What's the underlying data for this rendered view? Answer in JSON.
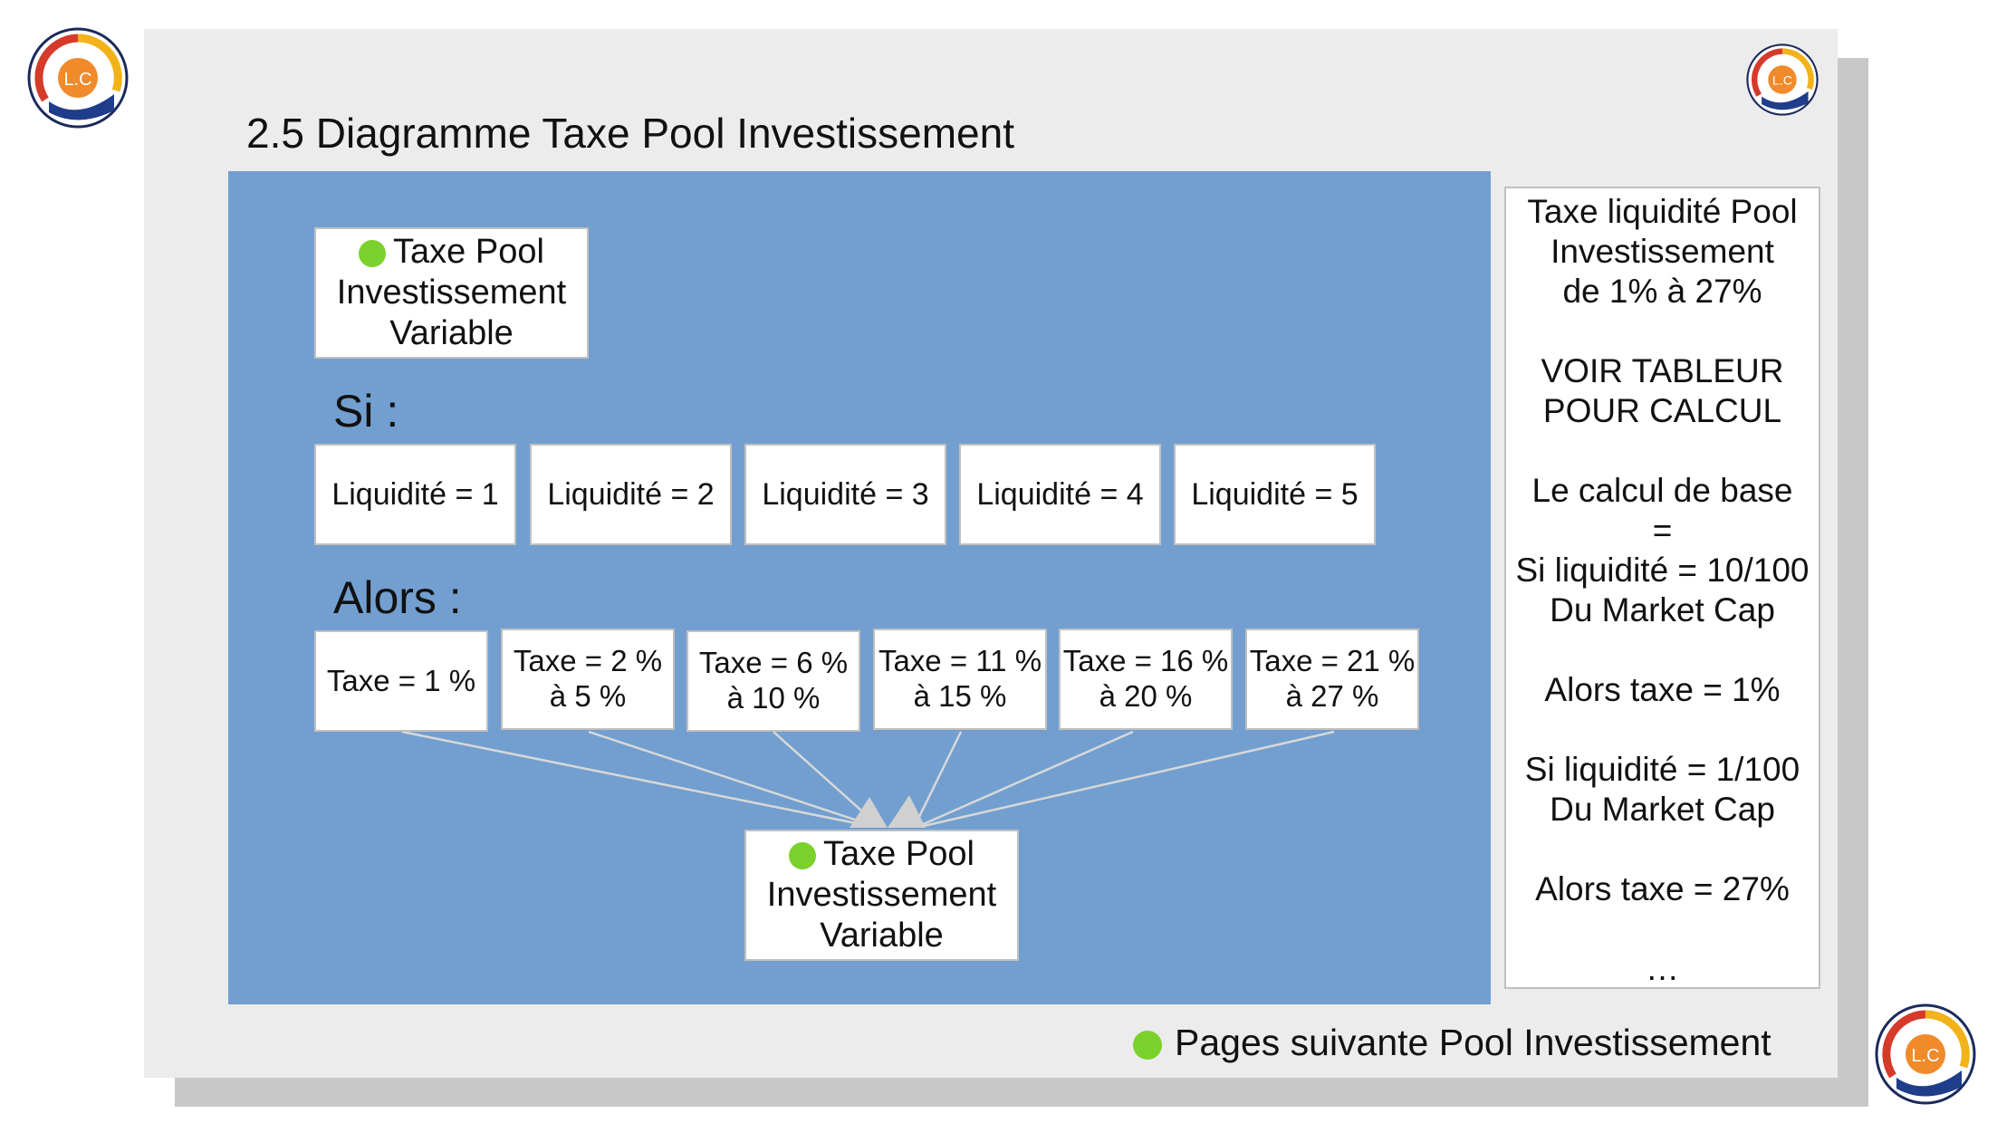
{
  "title": "2.5 Diagramme Taxe Pool Investissement",
  "colors": {
    "canvas": "#729fcf",
    "dot": "#7bd12b",
    "slide": "#ececec",
    "shadow": "#c8c8c8"
  },
  "top_box": {
    "lines": [
      "Taxe Pool",
      "Investissement",
      "Variable"
    ]
  },
  "si_label": "Si :",
  "liquidity": [
    "Liquidité = 1",
    "Liquidité = 2",
    "Liquidité = 3",
    "Liquidité = 4",
    "Liquidité = 5"
  ],
  "alors_label": "Alors :",
  "taxes": [
    [
      "Taxe = 1 %"
    ],
    [
      "Taxe = 2 %",
      "à 5 %"
    ],
    [
      "Taxe = 6 %",
      "à 10 %"
    ],
    [
      "Taxe = 11 %",
      "à 15 %"
    ],
    [
      "Taxe = 16 %",
      "à 20 %"
    ],
    [
      "Taxe = 21 %",
      "à 27 %"
    ]
  ],
  "bottom_box": {
    "lines": [
      "Taxe Pool",
      "Investissement",
      "Variable"
    ]
  },
  "side_panel": {
    "lines": [
      "Taxe liquidité Pool",
      "Investissement",
      "de 1% à 27%",
      "",
      "VOIR TABLEUR",
      "POUR CALCUL",
      "",
      "Le calcul de base",
      "=",
      "Si liquidité = 10/100",
      "Du Market Cap",
      "",
      "Alors taxe = 1%",
      "",
      "Si liquidité = 1/100",
      "Du Market Cap",
      "",
      "Alors taxe = 27%",
      "",
      "…"
    ]
  },
  "footer": "Pages suivante Pool Investissement",
  "logo_text": "L.C"
}
